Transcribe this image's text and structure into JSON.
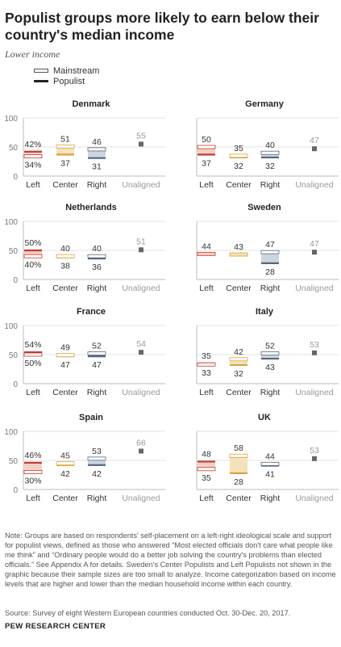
{
  "title": "Populist groups more likely to earn below their country's median income",
  "subtitle": "Lower income",
  "legend": {
    "mainstream": "Mainstream",
    "populist": "Populist"
  },
  "chart_data": {
    "type": "range",
    "y_ticks": [
      0,
      50,
      100
    ],
    "ylim": [
      0,
      100
    ],
    "categories": [
      "Left",
      "Center",
      "Right",
      "Unaligned"
    ],
    "colors": {
      "Left": "#c23b2f",
      "Center": "#d9a23a",
      "Right": "#55677d",
      "Unaligned": "#666666"
    },
    "panels": [
      {
        "country": "Denmark",
        "Left": {
          "populist": 42,
          "mainstream": 34,
          "populist_label": "42%",
          "mainstream_label": "34%"
        },
        "Center": {
          "populist": 37,
          "mainstream": 51
        },
        "Right": {
          "populist": 31,
          "mainstream": 46
        },
        "Unaligned": 55
      },
      {
        "country": "Germany",
        "Left": {
          "populist": 37,
          "mainstream": 50
        },
        "Center": {
          "populist": 32,
          "mainstream": 35
        },
        "Right": {
          "populist": 32,
          "mainstream": 40
        },
        "Unaligned": 47
      },
      {
        "country": "Netherlands",
        "Left": {
          "populist": 50,
          "mainstream": 40,
          "populist_label": "50%",
          "mainstream_label": "40%"
        },
        "Center": {
          "populist": 38,
          "mainstream": 40
        },
        "Right": {
          "populist": 36,
          "mainstream": 40
        },
        "Unaligned": 51
      },
      {
        "country": "Sweden",
        "Left": {
          "populist": null,
          "mainstream": 44
        },
        "Center": {
          "populist": null,
          "mainstream": 43
        },
        "Right": {
          "populist": 28,
          "mainstream": 47
        },
        "Unaligned": 47
      },
      {
        "country": "France",
        "Left": {
          "populist": 54,
          "mainstream": 50,
          "populist_label": "54%",
          "mainstream_label": "50%"
        },
        "Center": {
          "populist": 47,
          "mainstream": 49
        },
        "Right": {
          "populist": 47,
          "mainstream": 52
        },
        "Unaligned": 54
      },
      {
        "country": "Italy",
        "Left": {
          "populist": 35,
          "mainstream": 33
        },
        "Center": {
          "populist": 32,
          "mainstream": 42
        },
        "Right": {
          "populist": 43,
          "mainstream": 52
        },
        "Unaligned": 53
      },
      {
        "country": "Spain",
        "Left": {
          "populist": 46,
          "mainstream": 30,
          "populist_label": "46%",
          "mainstream_label": "30%"
        },
        "Center": {
          "populist": 42,
          "mainstream": 45
        },
        "Right": {
          "populist": 42,
          "mainstream": 53
        },
        "Unaligned": 66
      },
      {
        "country": "UK",
        "Left": {
          "populist": 48,
          "mainstream": 35
        },
        "Center": {
          "populist": 28,
          "mainstream": 58
        },
        "Right": {
          "populist": 41,
          "mainstream": 44
        },
        "Unaligned": 53
      }
    ]
  },
  "note": "Note: Groups are based on respondents' self-placement on a left-right ideological scale and support for populist views, defined as those who answered “Most elected officials don't care what people like me think” and “Ordinary people would do a better job solving the country's problems than elected officials.” See Appendix A for details. Sweden's Center Populists and Left Populists not shown in the graphic because their sample sizes are too small to analyze. Income categorization based on income levels that are higher and lower than the median household income within each country.",
  "source": "Source: Survey of eight Western European countries conducted Oct. 30-Dec. 20, 2017.",
  "org": "PEW RESEARCH CENTER"
}
